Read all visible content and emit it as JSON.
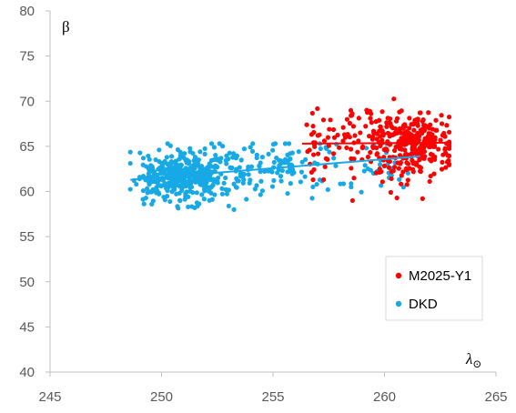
{
  "chart_data": {
    "type": "scatter",
    "xlabel": "λ",
    "xlabel_subscript": "⊙",
    "ylabel": "β",
    "xlim": [
      245,
      265
    ],
    "ylim": [
      40,
      80
    ],
    "xticks": [
      245,
      250,
      255,
      260,
      265
    ],
    "yticks": [
      40,
      45,
      50,
      55,
      60,
      65,
      70,
      75,
      80
    ],
    "grid": false,
    "legend_position": "bottom-right",
    "series": [
      {
        "name": "M2025-Y1",
        "color": "#ff0000",
        "cluster": {
          "x_range": [
            256.2,
            262.9
          ],
          "y_range": [
            59.0,
            70.5
          ],
          "count": 380
        },
        "trend_line": {
          "x": [
            256.3,
            262.8
          ],
          "y": [
            65.3,
            65.4
          ]
        }
      },
      {
        "name": "DKD",
        "color": "#16a9e6",
        "cluster": {
          "x_range": [
            248.6,
            261.8
          ],
          "y_range": [
            58.0,
            65.3
          ],
          "count": 560
        },
        "trend_line": {
          "x": [
            248.6,
            261.6
          ],
          "y": [
            61.3,
            63.9
          ]
        }
      }
    ]
  }
}
